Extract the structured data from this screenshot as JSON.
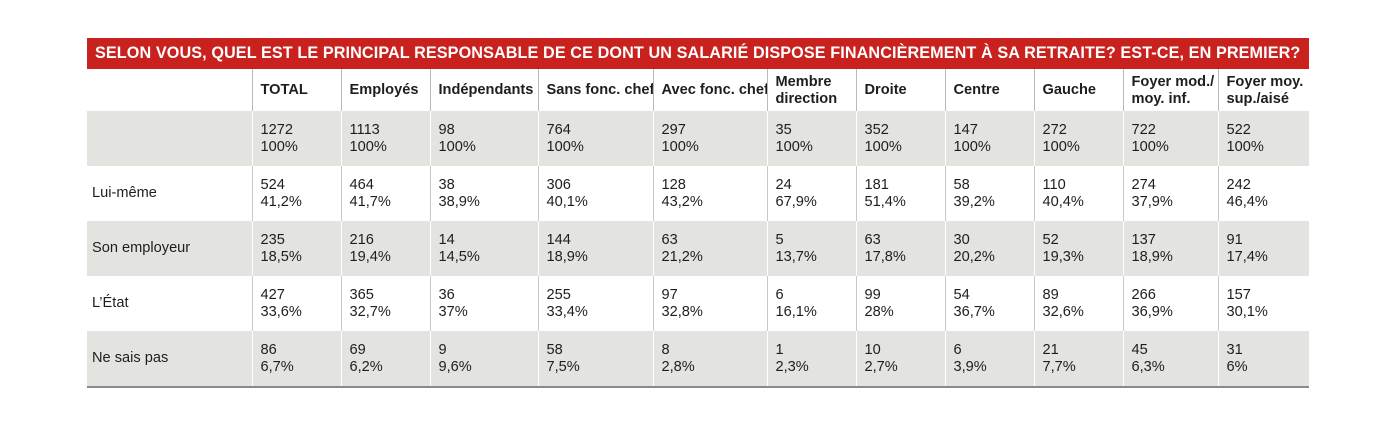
{
  "title": "SELON VOUS, QUEL EST LE PRINCIPAL RESPONSABLE DE CE DONT UN SALARIÉ DISPOSE FINANCIÈREMENT À SA RETRAITE? EST-CE, EN PREMIER?",
  "columns": [
    [
      "TOTAL"
    ],
    [
      "Employés"
    ],
    [
      "Indépendants"
    ],
    [
      "Sans fonc. chef"
    ],
    [
      "Avec fonc. chef"
    ],
    [
      "Membre",
      "direction"
    ],
    [
      "Droite"
    ],
    [
      "Centre"
    ],
    [
      "Gauche"
    ],
    [
      "Foyer mod./",
      "moy. inf."
    ],
    [
      "Foyer moy.",
      "sup./aisé"
    ]
  ],
  "rows": [
    {
      "label": "",
      "cells": [
        [
          "1272",
          "100%"
        ],
        [
          "1113",
          "100%"
        ],
        [
          "98",
          "100%"
        ],
        [
          "764",
          "100%"
        ],
        [
          "297",
          "100%"
        ],
        [
          "35",
          "100%"
        ],
        [
          "352",
          "100%"
        ],
        [
          "147",
          "100%"
        ],
        [
          "272",
          "100%"
        ],
        [
          "722",
          "100%"
        ],
        [
          "522",
          "100%"
        ]
      ]
    },
    {
      "label": "Lui-même",
      "cells": [
        [
          "524",
          "41,2%"
        ],
        [
          "464",
          "41,7%"
        ],
        [
          "38",
          "38,9%"
        ],
        [
          "306",
          "40,1%"
        ],
        [
          "128",
          "43,2%"
        ],
        [
          "24",
          "67,9%"
        ],
        [
          "181",
          "51,4%"
        ],
        [
          "58",
          "39,2%"
        ],
        [
          "110",
          "40,4%"
        ],
        [
          "274",
          "37,9%"
        ],
        [
          "242",
          "46,4%"
        ]
      ]
    },
    {
      "label": "Son employeur",
      "cells": [
        [
          "235",
          "18,5%"
        ],
        [
          "216",
          "19,4%"
        ],
        [
          "14",
          "14,5%"
        ],
        [
          "144",
          "18,9%"
        ],
        [
          "63",
          "21,2%"
        ],
        [
          "5",
          "13,7%"
        ],
        [
          "63",
          "17,8%"
        ],
        [
          "30",
          "20,2%"
        ],
        [
          "52",
          "19,3%"
        ],
        [
          "137",
          "18,9%"
        ],
        [
          "91",
          "17,4%"
        ]
      ]
    },
    {
      "label": "L’État",
      "cells": [
        [
          "427",
          "33,6%"
        ],
        [
          "365",
          "32,7%"
        ],
        [
          "36",
          "37%"
        ],
        [
          "255",
          "33,4%"
        ],
        [
          "97",
          "32,8%"
        ],
        [
          "6",
          "16,1%"
        ],
        [
          "99",
          "28%"
        ],
        [
          "54",
          "36,7%"
        ],
        [
          "89",
          "32,6%"
        ],
        [
          "266",
          "36,9%"
        ],
        [
          "157",
          "30,1%"
        ]
      ]
    },
    {
      "label": "Ne sais pas",
      "cells": [
        [
          "86",
          "6,7%"
        ],
        [
          "69",
          "6,2%"
        ],
        [
          "9",
          "9,6%"
        ],
        [
          "58",
          "7,5%"
        ],
        [
          "8",
          "2,8%"
        ],
        [
          "1",
          "2,3%"
        ],
        [
          "10",
          "2,7%"
        ],
        [
          "6",
          "3,9%"
        ],
        [
          "21",
          "7,7%"
        ],
        [
          "45",
          "6,3%"
        ],
        [
          "31",
          "6%"
        ]
      ]
    }
  ],
  "colors": {
    "title_bg": "#c8211e",
    "title_text": "#ffffff",
    "shaded_row": "#e3e3e0"
  }
}
